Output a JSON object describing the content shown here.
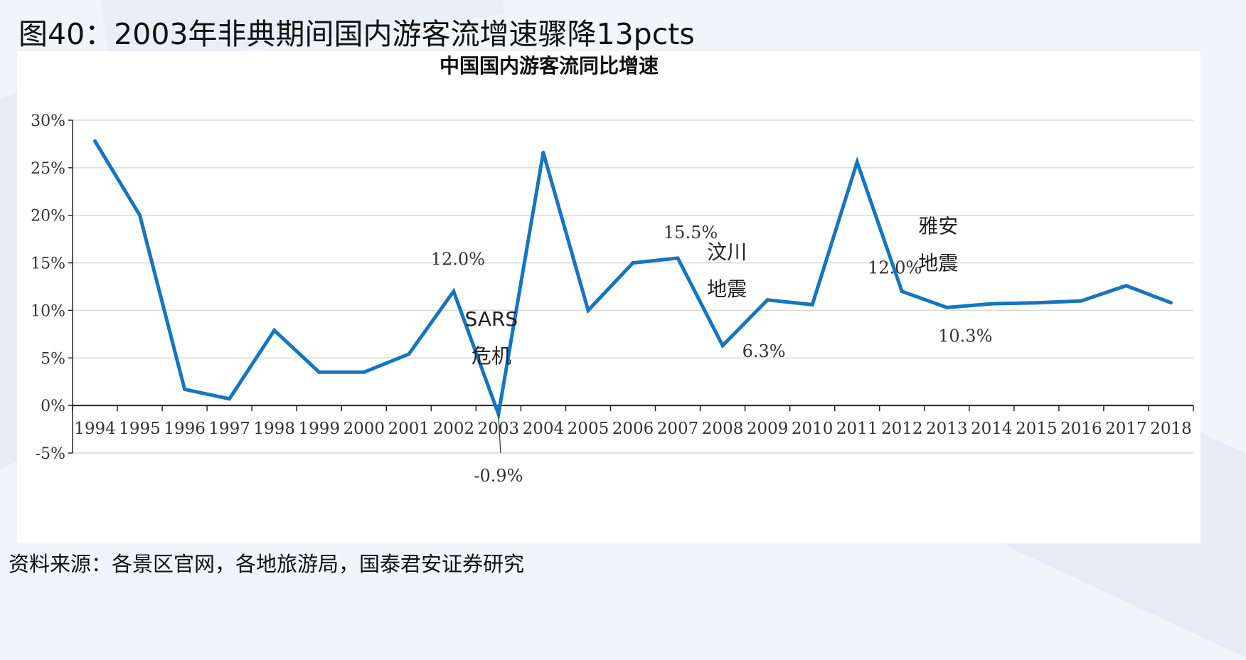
{
  "figure_title": "图40：2003年非典期间国内游客流增速骤降13pcts",
  "source": "资料来源：各景区官网，各地旅游局，国泰君安证券研究",
  "colors": {
    "line": "#1675c0",
    "grid": "#d9d9d9",
    "axis": "#222222"
  },
  "chart_data": {
    "type": "line",
    "title": "中国国内游客流同比增速",
    "xlabel": "",
    "ylabel": "",
    "ylim": [
      -5,
      30
    ],
    "yticks": [
      30,
      25,
      20,
      15,
      10,
      5,
      0,
      -5
    ],
    "ytick_labels": [
      "30%",
      "25%",
      "20%",
      "15%",
      "10%",
      "5%",
      "0%",
      "-5%"
    ],
    "grid": true,
    "legend": "none",
    "categories": [
      "1994",
      "1995",
      "1996",
      "1997",
      "1998",
      "1999",
      "2000",
      "2001",
      "2002",
      "2003",
      "2004",
      "2005",
      "2006",
      "2007",
      "2008",
      "2009",
      "2010",
      "2011",
      "2012",
      "2013",
      "2014",
      "2015",
      "2016",
      "2017",
      "2018"
    ],
    "series": [
      {
        "values": [
          27.8,
          20.0,
          1.7,
          0.7,
          7.9,
          3.5,
          3.5,
          5.4,
          12.0,
          -0.9,
          26.6,
          10.0,
          15.0,
          15.5,
          6.3,
          11.1,
          10.6,
          25.6,
          12.0,
          10.3,
          10.7,
          10.8,
          11.0,
          12.6,
          10.8
        ]
      }
    ],
    "data_labels": [
      {
        "category": "2002",
        "text": "12.0%"
      },
      {
        "category": "2003",
        "text": "-0.9%"
      },
      {
        "category": "2007",
        "text": "15.5%"
      },
      {
        "category": "2008",
        "text": "6.3%"
      },
      {
        "category": "2012",
        "text": "12.0%"
      },
      {
        "category": "2013",
        "text": "10.3%"
      }
    ],
    "annotations": [
      {
        "category": "2003",
        "lines": [
          "SARS",
          "危机"
        ]
      },
      {
        "category": "2008",
        "lines": [
          "汶川",
          "地震"
        ]
      },
      {
        "category": "2013",
        "lines": [
          "雅安",
          "地震"
        ]
      }
    ]
  }
}
